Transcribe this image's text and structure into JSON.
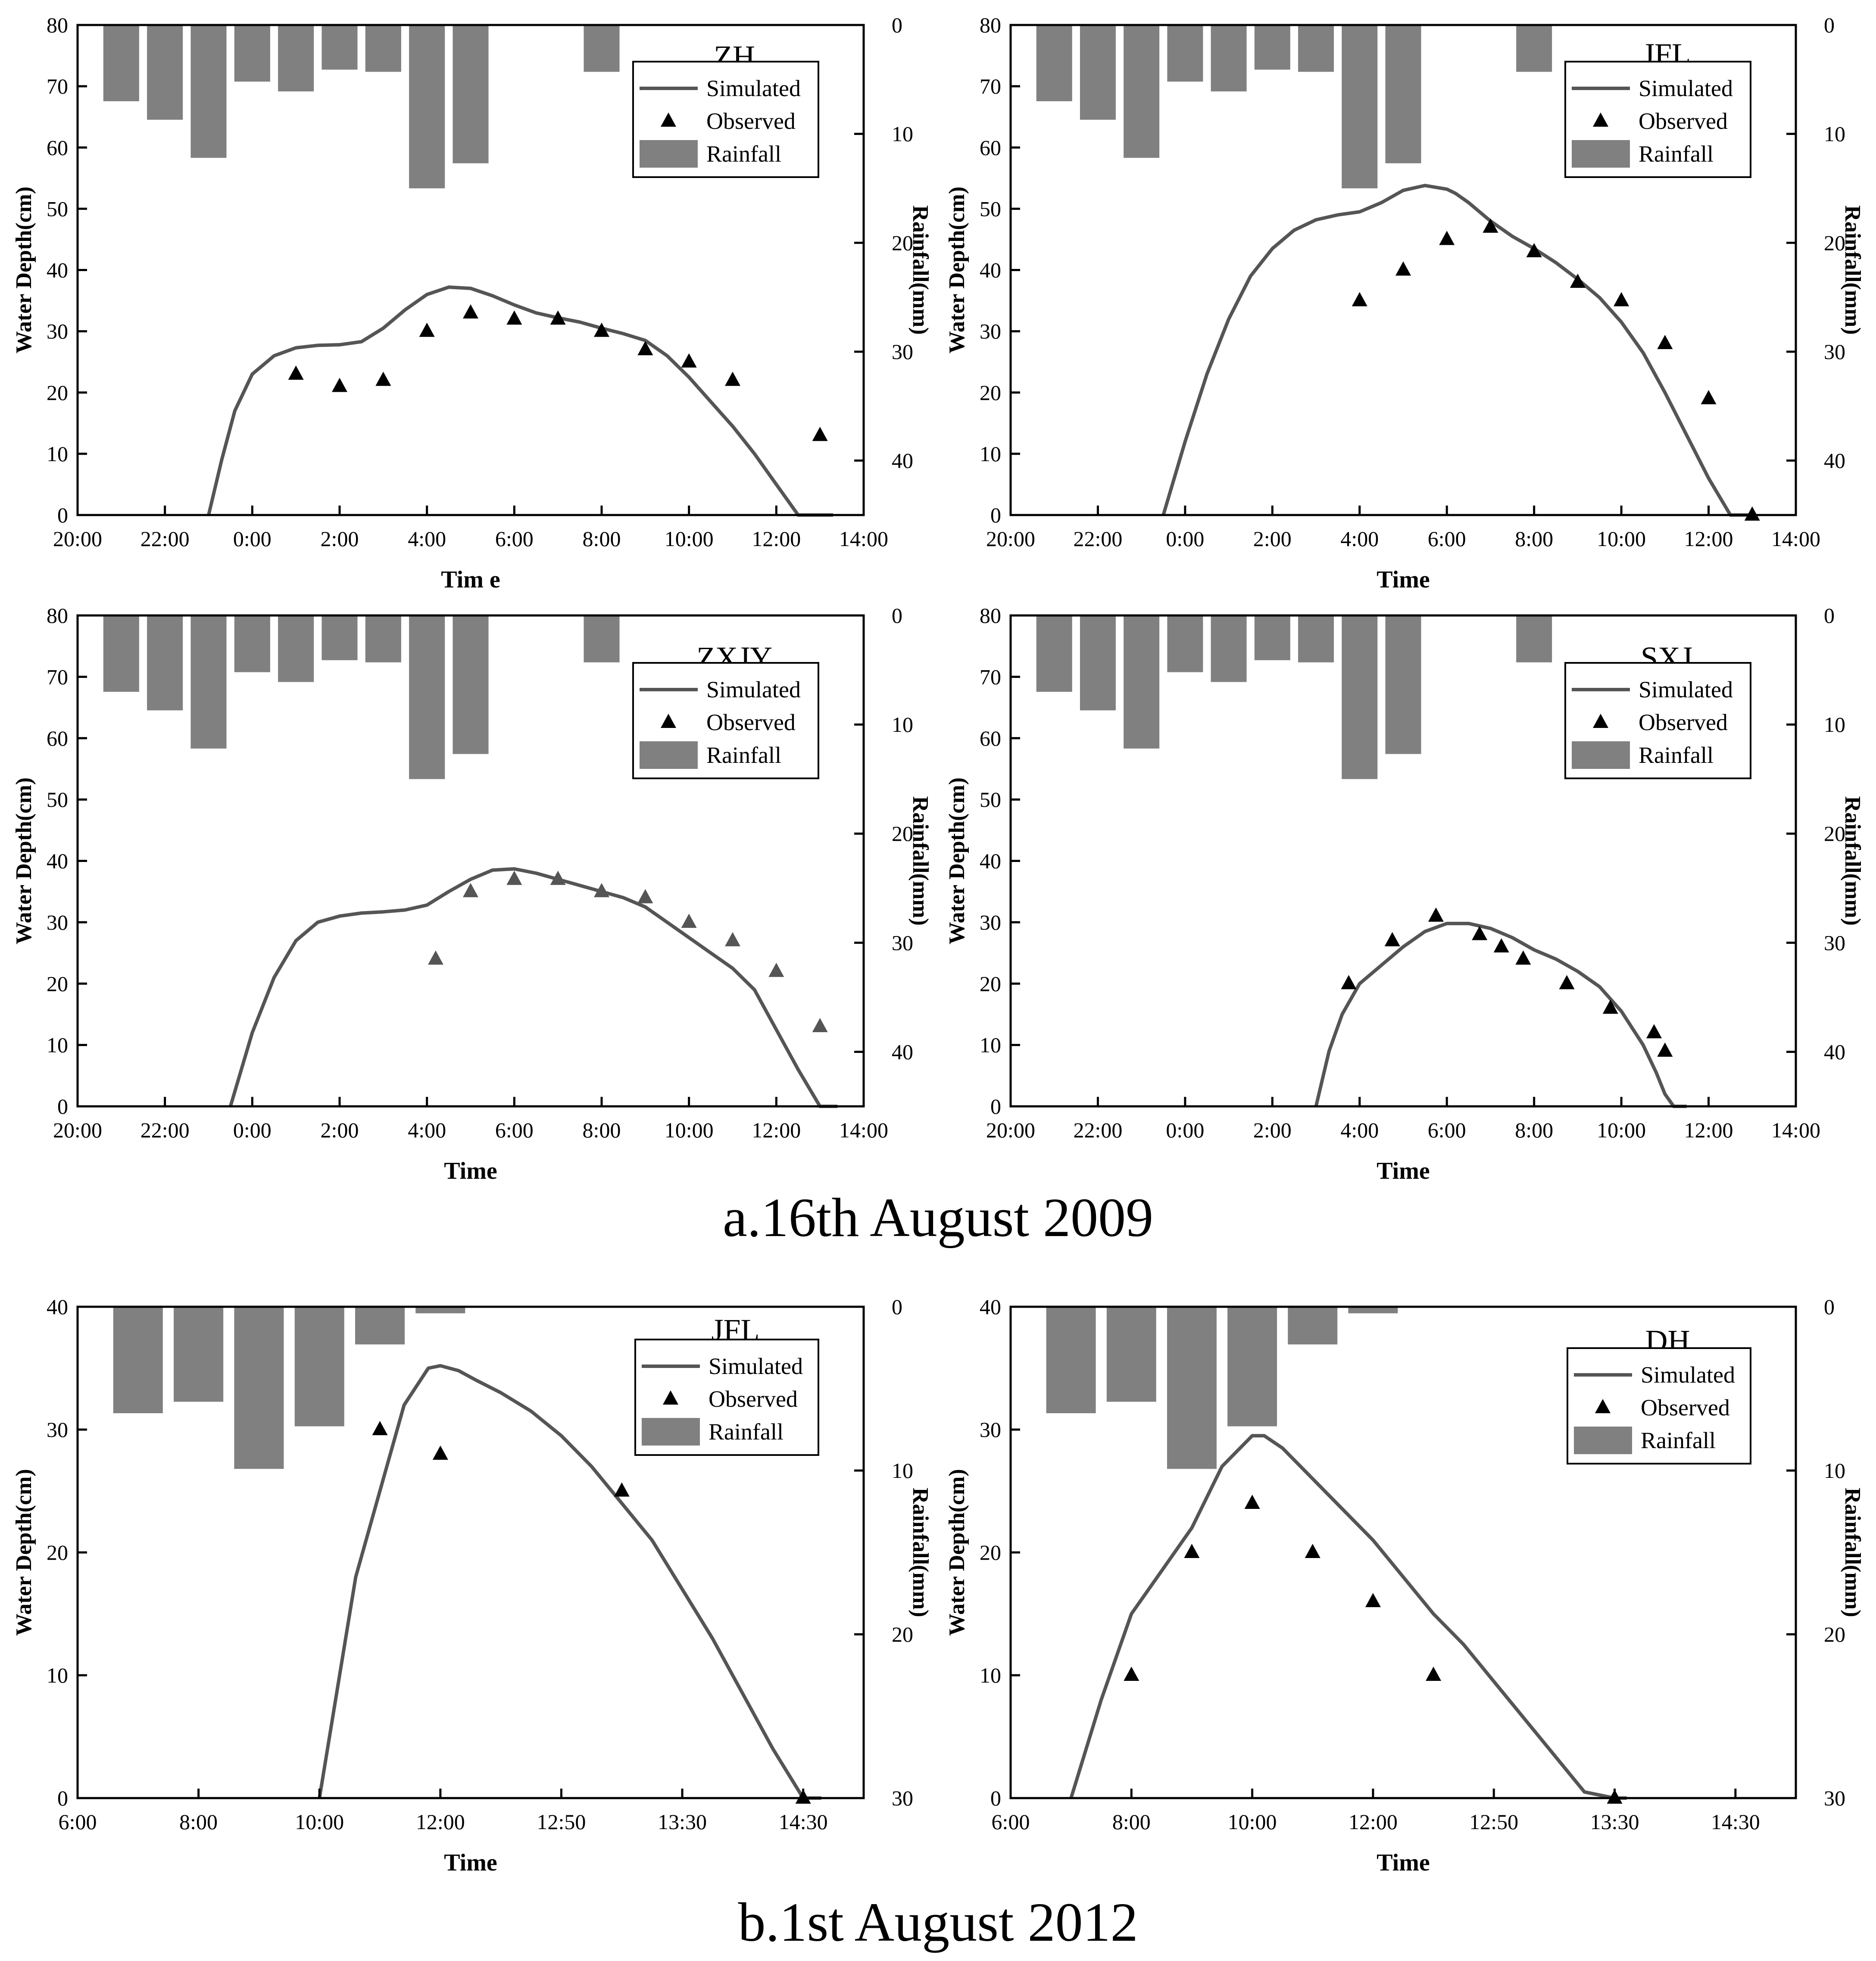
{
  "figure": {
    "caption_a": "a.16th August 2009",
    "caption_b": "b.1st August 2012"
  },
  "colors": {
    "rain_bar": "#808080",
    "sim_line": "#555555",
    "obs_marker_black": "#000000",
    "obs_marker_grey": "#555555",
    "axis": "#000000"
  },
  "chart_data": [
    {
      "id": "a-zh",
      "type": "bar+line+scatter",
      "title": "ZH",
      "xlabel": "Tim e",
      "ylabel": "Water Depth(cm)",
      "y2label": "Rainfall(mm)",
      "x_unit": "hours from 20:00",
      "xlim": [
        0,
        18
      ],
      "x_ticks": [
        0,
        2,
        4,
        6,
        8,
        10,
        12,
        14,
        16,
        18
      ],
      "x_tick_labels": [
        "20:00",
        "22:00",
        "0:00",
        "2:00",
        "4:00",
        "6:00",
        "8:00",
        "10:00",
        "12:00",
        "14:00"
      ],
      "ylim": [
        0,
        80
      ],
      "y_ticks": [
        0,
        10,
        20,
        30,
        40,
        50,
        60,
        70,
        80
      ],
      "y2lim": [
        0,
        45
      ],
      "y2_ticks": [
        0,
        10,
        20,
        30,
        40
      ],
      "legend": [
        "Simulated",
        "Observed",
        "Rainfall"
      ],
      "legend_position": "top-right",
      "rainfall": {
        "x": [
          1,
          2,
          3,
          4,
          5,
          6,
          7,
          8,
          9,
          12
        ],
        "values": [
          7,
          8.7,
          12.2,
          5.2,
          6.1,
          4.1,
          4.3,
          15,
          12.7,
          4.3
        ]
      },
      "simulated": {
        "x": [
          3,
          3.3,
          3.6,
          4,
          4.5,
          5,
          5.5,
          6,
          6.5,
          7,
          7.5,
          8,
          8.5,
          9,
          9.5,
          10,
          10.5,
          11,
          11.5,
          12,
          12.5,
          13,
          13.5,
          14,
          14.5,
          15,
          15.5,
          16,
          16.5,
          17,
          17.3
        ],
        "values": [
          0,
          9,
          17,
          23,
          26,
          27.3,
          27.7,
          27.8,
          28.3,
          30.5,
          33.5,
          36,
          37.2,
          37,
          35.8,
          34.3,
          33,
          32.2,
          31.5,
          30.5,
          29.6,
          28.5,
          26,
          22.5,
          18.5,
          14.5,
          10,
          5,
          0,
          0,
          0
        ]
      },
      "observed": {
        "x": [
          5,
          6,
          7,
          8,
          9,
          10,
          11,
          12,
          13,
          14,
          15,
          17
        ],
        "values": [
          23,
          21,
          22,
          30,
          33,
          32,
          32,
          30,
          27,
          25,
          22,
          13
        ],
        "color": "black"
      }
    },
    {
      "id": "a-jfl",
      "type": "bar+line+scatter",
      "title": "JFL",
      "xlabel": "Time",
      "ylabel": "Water Depth(cm)",
      "y2label": "Rainfall(mm)",
      "x_unit": "hours from 20:00",
      "xlim": [
        0,
        18
      ],
      "x_ticks": [
        0,
        2,
        4,
        6,
        8,
        10,
        12,
        14,
        16,
        18
      ],
      "x_tick_labels": [
        "20:00",
        "22:00",
        "0:00",
        "2:00",
        "4:00",
        "6:00",
        "8:00",
        "10:00",
        "12:00",
        "14:00"
      ],
      "ylim": [
        0,
        80
      ],
      "y_ticks": [
        0,
        10,
        20,
        30,
        40,
        50,
        60,
        70,
        80
      ],
      "y2lim": [
        0,
        45
      ],
      "y2_ticks": [
        0,
        10,
        20,
        30,
        40
      ],
      "legend": [
        "Simulated",
        "Observed",
        "Rainfall"
      ],
      "legend_position": "top-right",
      "rainfall": {
        "x": [
          1,
          2,
          3,
          4,
          5,
          6,
          7,
          8,
          9,
          12
        ],
        "values": [
          7,
          8.7,
          12.2,
          5.2,
          6.1,
          4.1,
          4.3,
          15,
          12.7,
          4.3
        ]
      },
      "simulated": {
        "x": [
          3.5,
          4,
          4.5,
          5,
          5.5,
          6,
          6.5,
          7,
          7.5,
          8,
          8.5,
          9,
          9.5,
          10,
          10.2,
          10.5,
          11,
          11.5,
          12,
          12.5,
          13,
          13.5,
          14,
          14.5,
          15,
          15.5,
          16,
          16.5,
          17
        ],
        "values": [
          0,
          12,
          23,
          32,
          39,
          43.5,
          46.5,
          48.2,
          49,
          49.5,
          51,
          53,
          53.8,
          53.2,
          52.5,
          51,
          48,
          45.5,
          43.5,
          41.2,
          38.5,
          35.5,
          31.5,
          26.5,
          20,
          13,
          6,
          0,
          0
        ]
      },
      "observed": {
        "x": [
          8,
          9,
          10,
          11,
          12,
          13,
          14,
          15,
          16,
          17
        ],
        "values": [
          35,
          40,
          45,
          47,
          43,
          38,
          35,
          28,
          19,
          0
        ],
        "color": "black"
      }
    },
    {
      "id": "a-zxjy",
      "type": "bar+line+scatter",
      "title": "ZXJY",
      "xlabel": "Time",
      "ylabel": "Water Depth(cm)",
      "y2label": "Rainfall(mm)",
      "x_unit": "hours from 20:00",
      "xlim": [
        0,
        18
      ],
      "x_ticks": [
        0,
        2,
        4,
        6,
        8,
        10,
        12,
        14,
        16,
        18
      ],
      "x_tick_labels": [
        "20:00",
        "22:00",
        "0:00",
        "2:00",
        "4:00",
        "6:00",
        "8:00",
        "10:00",
        "12:00",
        "14:00"
      ],
      "ylim": [
        0,
        80
      ],
      "y_ticks": [
        0,
        10,
        20,
        30,
        40,
        50,
        60,
        70,
        80
      ],
      "y2lim": [
        0,
        45
      ],
      "y2_ticks": [
        0,
        10,
        20,
        30,
        40
      ],
      "legend": [
        "Simulated",
        "Observed",
        "Rainfall"
      ],
      "legend_position": "top-right",
      "rainfall": {
        "x": [
          1,
          2,
          3,
          4,
          5,
          6,
          7,
          8,
          9,
          12
        ],
        "values": [
          7,
          8.7,
          12.2,
          5.2,
          6.1,
          4.1,
          4.3,
          15,
          12.7,
          4.3
        ]
      },
      "simulated": {
        "x": [
          3.5,
          4,
          4.5,
          5,
          5.5,
          6,
          6.5,
          7,
          7.5,
          8,
          8.5,
          9,
          9.5,
          10,
          10.5,
          11,
          11.5,
          12,
          12.5,
          13,
          13.5,
          14,
          14.5,
          15,
          15.5,
          16,
          16.5,
          17,
          17.4
        ],
        "values": [
          0,
          12,
          21,
          27,
          30,
          31,
          31.5,
          31.7,
          32,
          32.8,
          35,
          37,
          38.5,
          38.7,
          38,
          37,
          36,
          35,
          34,
          32.5,
          30,
          27.5,
          25,
          22.5,
          19,
          12.5,
          6,
          0,
          0
        ]
      },
      "observed": {
        "x": [
          8.2,
          9,
          10,
          11,
          12,
          13,
          14,
          15,
          16,
          17
        ],
        "values": [
          24,
          35,
          37,
          37,
          35,
          34,
          30,
          27,
          22,
          13
        ],
        "color": "grey"
      }
    },
    {
      "id": "a-sxj",
      "type": "bar+line+scatter",
      "title": "SXJ",
      "xlabel": "Time",
      "ylabel": "Water Depth(cm)",
      "y2label": "Rainfall(mm)",
      "x_unit": "hours from 20:00",
      "xlim": [
        0,
        18
      ],
      "x_ticks": [
        0,
        2,
        4,
        6,
        8,
        10,
        12,
        14,
        16,
        18
      ],
      "x_tick_labels": [
        "20:00",
        "22:00",
        "0:00",
        "2:00",
        "4:00",
        "6:00",
        "8:00",
        "10:00",
        "12:00",
        "14:00"
      ],
      "ylim": [
        0,
        80
      ],
      "y_ticks": [
        0,
        10,
        20,
        30,
        40,
        50,
        60,
        70,
        80
      ],
      "y2lim": [
        0,
        45
      ],
      "y2_ticks": [
        0,
        10,
        20,
        30,
        40
      ],
      "legend": [
        "Simulated",
        "Observed",
        "Rainfall"
      ],
      "legend_position": "top-right",
      "rainfall": {
        "x": [
          1,
          2,
          3,
          4,
          5,
          6,
          7,
          8,
          9,
          12
        ],
        "values": [
          7,
          8.7,
          12.2,
          5.2,
          6.1,
          4.1,
          4.3,
          15,
          12.7,
          4.3
        ]
      },
      "simulated": {
        "x": [
          7,
          7.3,
          7.6,
          8,
          8.5,
          9,
          9.5,
          10,
          10.5,
          11,
          11.5,
          12,
          12.5,
          13,
          13.5,
          14,
          14.5,
          14.8,
          15,
          15.2,
          15.5
        ],
        "values": [
          0,
          9,
          15,
          20,
          23,
          26,
          28.5,
          29.8,
          29.8,
          29,
          27.5,
          25.5,
          24,
          22,
          19.5,
          15.5,
          10,
          5.5,
          2,
          0,
          0
        ]
      },
      "observed": {
        "x": [
          7.75,
          8.75,
          9.75,
          10.75,
          11.25,
          11.75,
          12.75,
          13.75,
          14.75,
          15
        ],
        "values": [
          20,
          27,
          31,
          28,
          26,
          24,
          20,
          16,
          12,
          9
        ],
        "color": "black"
      }
    },
    {
      "id": "b-jfl",
      "type": "bar+line+scatter",
      "title": "JFL",
      "xlabel": "Time",
      "ylabel": "Water Depth(cm)",
      "y2label": "Rainfall(mm)",
      "x_unit": "tick index",
      "xlim": [
        0,
        13
      ],
      "x_ticks": [
        0,
        2,
        4,
        6,
        8,
        10,
        12
      ],
      "x_tick_labels": [
        "6:00",
        "8:00",
        "10:00",
        "12:00",
        "12:50",
        "13:30",
        "14:30"
      ],
      "ylim": [
        0,
        40
      ],
      "y_ticks": [
        0,
        10,
        20,
        30,
        40
      ],
      "y2lim": [
        0,
        30
      ],
      "y2_ticks": [
        0,
        10,
        20,
        30
      ],
      "legend": [
        "Simulated",
        "Observed",
        "Rainfall"
      ],
      "legend_position": "top-right",
      "rainfall": {
        "x": [
          1,
          2,
          3,
          4,
          5,
          6
        ],
        "values": [
          6.5,
          5.8,
          9.9,
          7.3,
          2.3,
          0.4
        ]
      },
      "simulated": {
        "x": [
          4,
          4.3,
          4.6,
          5,
          5.4,
          5.8,
          6,
          6.3,
          6.6,
          7,
          7.5,
          8,
          8.5,
          9,
          9.5,
          10,
          10.5,
          11,
          11.5,
          12,
          12.3
        ],
        "values": [
          0,
          9,
          18,
          25,
          32,
          35,
          35.2,
          34.8,
          34,
          33,
          31.5,
          29.5,
          27,
          24,
          21,
          17,
          13,
          8.5,
          4,
          0,
          0
        ]
      },
      "observed": {
        "x": [
          5,
          6,
          9,
          12
        ],
        "values": [
          30,
          28,
          25,
          0
        ],
        "color": "black"
      }
    },
    {
      "id": "b-dh",
      "type": "bar+line+scatter",
      "title": "DH",
      "xlabel": "Time",
      "ylabel": "Water Depth(cm)",
      "y2label": "Rainfall(mm)",
      "x_unit": "tick index",
      "xlim": [
        0,
        13
      ],
      "x_ticks": [
        0,
        2,
        4,
        6,
        8,
        10,
        12
      ],
      "x_tick_labels": [
        "6:00",
        "8:00",
        "10:00",
        "12:00",
        "12:50",
        "13:30",
        "14:30"
      ],
      "ylim": [
        0,
        40
      ],
      "y_ticks": [
        0,
        10,
        20,
        30,
        40
      ],
      "y2lim": [
        0,
        30
      ],
      "y2_ticks": [
        0,
        10,
        20,
        30
      ],
      "legend": [
        "Simulated",
        "Observed",
        "Rainfall"
      ],
      "legend_position": "top-right",
      "rainfall": {
        "x": [
          1,
          2,
          3,
          4,
          5,
          6
        ],
        "values": [
          6.5,
          5.8,
          9.9,
          7.3,
          2.3,
          0.4
        ]
      },
      "simulated": {
        "x": [
          1,
          1.5,
          2,
          2.5,
          3,
          3.5,
          4,
          4.2,
          4.5,
          5,
          5.5,
          6,
          6.5,
          7,
          7.5,
          8,
          8.5,
          9,
          9.5,
          10,
          10.2
        ],
        "values": [
          0,
          8,
          15,
          18.5,
          22,
          27,
          29.5,
          29.5,
          28.5,
          26,
          23.5,
          21,
          18,
          15,
          12.5,
          9.5,
          6.5,
          3.5,
          0.5,
          0,
          0
        ]
      },
      "observed": {
        "x": [
          2,
          3,
          4,
          5,
          6,
          7,
          10
        ],
        "values": [
          10,
          20,
          24,
          20,
          16,
          10,
          0
        ],
        "color": "black"
      }
    }
  ]
}
